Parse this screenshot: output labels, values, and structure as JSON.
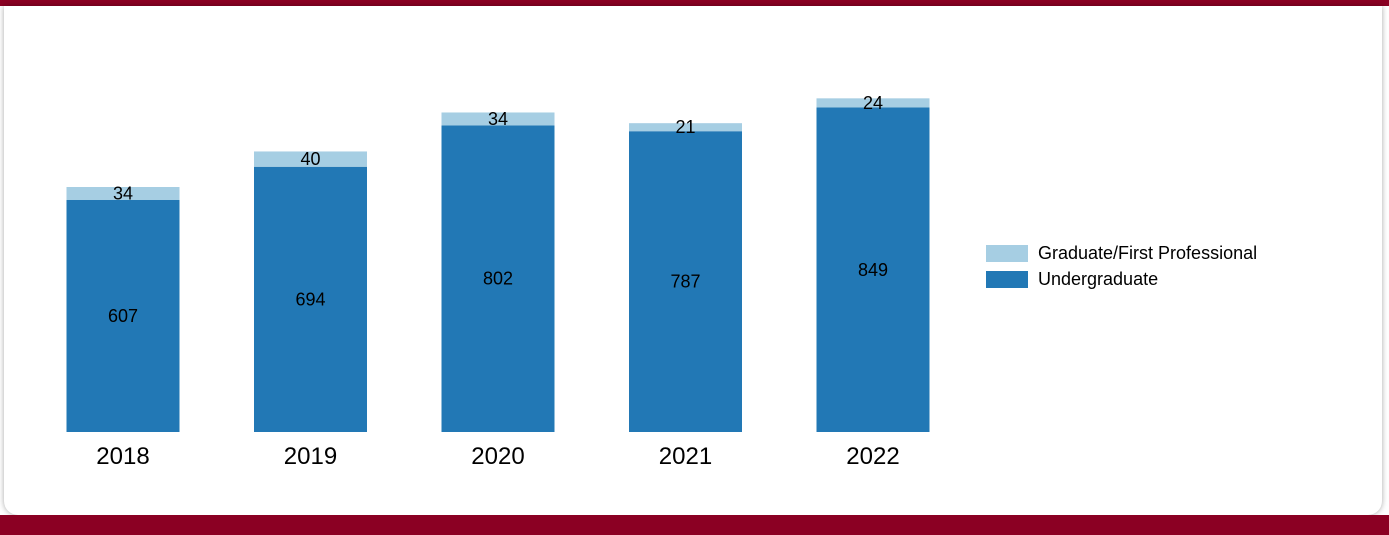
{
  "chart_data": {
    "type": "bar",
    "stacked": true,
    "categories": [
      "2018",
      "2019",
      "2020",
      "2021",
      "2022"
    ],
    "series": [
      {
        "name": "Undergraduate",
        "values": [
          607,
          694,
          802,
          787,
          849
        ],
        "color": "#2278b5"
      },
      {
        "name": "Graduate/First Professional",
        "values": [
          34,
          40,
          34,
          21,
          24
        ],
        "color": "#a6cee3"
      }
    ],
    "ylim": [
      0,
      1000
    ],
    "grid": false,
    "legend": "right"
  },
  "legend": {
    "items": [
      {
        "label": "Graduate/First Professional",
        "color": "#a6cee3"
      },
      {
        "label": "Undergraduate",
        "color": "#2278b5"
      }
    ]
  },
  "frame": {
    "accent_color": "#8b0023"
  }
}
